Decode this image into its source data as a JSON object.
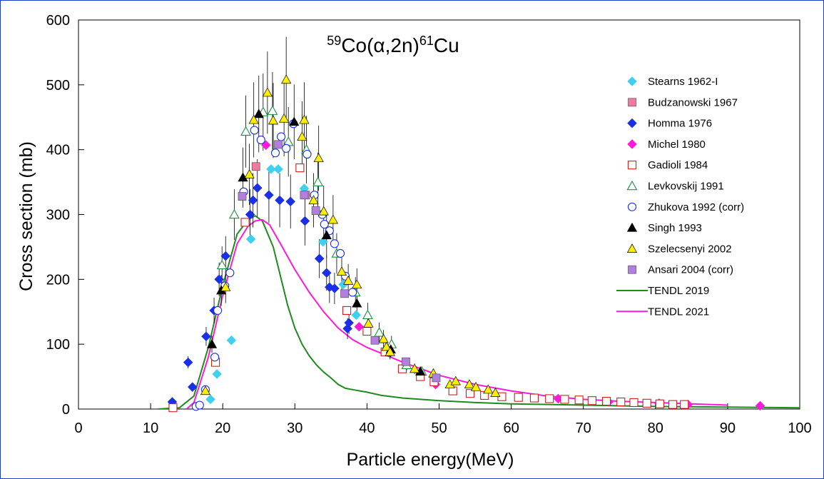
{
  "chart_data": {
    "type": "scatter",
    "title": {
      "prefix_sup": "59",
      "main": "Co(α,2n)",
      "suffix_sup": "61",
      "suffix": "Cu"
    },
    "xlabel": "Particle energy(MeV)",
    "ylabel": "Cross section (mb)",
    "xlim": [
      0,
      100
    ],
    "ylim": [
      0,
      600
    ],
    "xticks": [
      0,
      10,
      20,
      30,
      40,
      50,
      60,
      70,
      80,
      90,
      100
    ],
    "yticks": [
      0,
      100,
      200,
      300,
      400,
      500,
      600
    ],
    "legend_position": "right",
    "series": [
      {
        "name": "Stearns 1962-I",
        "marker": "diamond",
        "color": "#3fd0f0",
        "filled": true,
        "points": [
          [
            18.3,
            15
          ],
          [
            19.2,
            54
          ],
          [
            21.2,
            106
          ],
          [
            23.9,
            262
          ],
          [
            26.7,
            370
          ],
          [
            27.7,
            370
          ],
          [
            31.3,
            340
          ],
          [
            33.9,
            258
          ],
          [
            36.7,
            192
          ],
          [
            38.5,
            145
          ]
        ]
      },
      {
        "name": "Budzanowski 1967",
        "marker": "square",
        "color": "#f07aa0",
        "filled": true,
        "points": [
          [
            24.6,
            374
          ],
          [
            31.5,
            330
          ]
        ]
      },
      {
        "name": "Homma 1976",
        "marker": "diamond",
        "color": "#1a2fe6",
        "filled": true,
        "points": [
          [
            13.0,
            11
          ],
          [
            15.2,
            72
          ],
          [
            15.8,
            34
          ],
          [
            17.7,
            112
          ],
          [
            18.8,
            152
          ],
          [
            19.5,
            200
          ],
          [
            20.4,
            236
          ],
          [
            23.8,
            300
          ],
          [
            24.2,
            322
          ],
          [
            24.8,
            341
          ],
          [
            26.4,
            330
          ],
          [
            27.9,
            322
          ],
          [
            29.4,
            320
          ],
          [
            31.4,
            290
          ],
          [
            33.4,
            232
          ],
          [
            34.4,
            210
          ],
          [
            34.8,
            188
          ],
          [
            35.5,
            186
          ],
          [
            37.3,
            124
          ],
          [
            37.5,
            133
          ]
        ]
      },
      {
        "name": "Michel 1980",
        "marker": "diamond",
        "color": "#ff1ad9",
        "filled": true,
        "points": [
          [
            26.0,
            407
          ],
          [
            38.9,
            127
          ],
          [
            49.5,
            38
          ],
          [
            66.5,
            16
          ],
          [
            73.5,
            11
          ],
          [
            80.5,
            9
          ],
          [
            84.5,
            7
          ],
          [
            94.5,
            5
          ]
        ]
      },
      {
        "name": "Gadioli 1984",
        "marker": "square",
        "color": "#cc1f1f",
        "filled": false,
        "points": [
          [
            13.1,
            2
          ],
          [
            19.0,
            72
          ],
          [
            23.1,
            288
          ],
          [
            30.7,
            372
          ],
          [
            37.2,
            152
          ],
          [
            40.0,
            120
          ],
          [
            42.5,
            88
          ],
          [
            44.9,
            62
          ],
          [
            47.4,
            50
          ],
          [
            49.3,
            42
          ],
          [
            51.9,
            28
          ],
          [
            54.3,
            24
          ],
          [
            56.3,
            21
          ],
          [
            58.7,
            19
          ],
          [
            61.0,
            18
          ],
          [
            63.2,
            17
          ],
          [
            65.3,
            16
          ],
          [
            67.4,
            15
          ],
          [
            69.4,
            14
          ],
          [
            71.2,
            13
          ],
          [
            73.2,
            12
          ],
          [
            75.2,
            11
          ],
          [
            77.0,
            10
          ],
          [
            78.8,
            9
          ],
          [
            80.6,
            8
          ],
          [
            82.4,
            7
          ],
          [
            84.0,
            7
          ]
        ]
      },
      {
        "name": "Levkovskij 1991",
        "marker": "triangle",
        "color": "#1f8f3f",
        "filled": false,
        "points": [
          [
            19.9,
            222
          ],
          [
            21.6,
            300
          ],
          [
            23.2,
            428
          ],
          [
            25.6,
            458
          ],
          [
            26.9,
            460
          ],
          [
            29.1,
            412
          ],
          [
            31.6,
            400
          ],
          [
            33.2,
            350
          ],
          [
            35.8,
            240
          ],
          [
            38.4,
            180
          ],
          [
            40.1,
            145
          ],
          [
            41.7,
            118
          ],
          [
            43.4,
            100
          ],
          [
            45.5,
            68
          ],
          [
            47.6,
            58
          ]
        ]
      },
      {
        "name": "Zhukova 1992 (corr)",
        "marker": "circle",
        "color": "#1a2fe6",
        "filled": false,
        "points": [
          [
            16.3,
            4
          ],
          [
            16.8,
            6
          ],
          [
            17.6,
            30
          ],
          [
            18.9,
            80
          ],
          [
            19.3,
            152
          ],
          [
            20.3,
            190
          ],
          [
            21.0,
            210
          ],
          [
            22.9,
            335
          ],
          [
            24.4,
            430
          ],
          [
            25.3,
            415
          ],
          [
            27.3,
            395
          ],
          [
            28.1,
            420
          ],
          [
            28.8,
            402
          ],
          [
            29.8,
            440
          ],
          [
            31.7,
            393
          ],
          [
            32.7,
            330
          ],
          [
            33.8,
            300
          ],
          [
            34.1,
            285
          ],
          [
            34.8,
            275
          ],
          [
            35.5,
            255
          ],
          [
            36.3,
            240
          ],
          [
            37.0,
            205
          ],
          [
            38.0,
            180
          ]
        ]
      },
      {
        "name": "Singh 1993",
        "marker": "triangle",
        "color": "#000000",
        "filled": true,
        "points": [
          [
            18.5,
            100
          ],
          [
            19.8,
            183
          ],
          [
            22.8,
            357
          ],
          [
            25.0,
            455
          ],
          [
            29.9,
            443
          ],
          [
            34.4,
            268
          ],
          [
            38.6,
            163
          ],
          [
            43.3,
            92
          ],
          [
            47.4,
            58
          ]
        ]
      },
      {
        "name": "Szelecsenyi 2002",
        "marker": "triangle",
        "color": "#ffee00",
        "filled": true,
        "points": [
          [
            17.6,
            28
          ],
          [
            20.4,
            188
          ],
          [
            23.7,
            362
          ],
          [
            24.3,
            446
          ],
          [
            26.2,
            488
          ],
          [
            27.0,
            445
          ],
          [
            28.5,
            448
          ],
          [
            28.8,
            508
          ],
          [
            31.0,
            420
          ],
          [
            31.3,
            446
          ],
          [
            32.6,
            322
          ],
          [
            33.3,
            387
          ],
          [
            34.0,
            305
          ],
          [
            35.3,
            292
          ],
          [
            36.5,
            212
          ],
          [
            37.4,
            198
          ],
          [
            38.6,
            192
          ],
          [
            40.2,
            132
          ],
          [
            42.3,
            108
          ],
          [
            42.7,
            96
          ],
          [
            43.2,
            88
          ],
          [
            46.6,
            62
          ],
          [
            49.2,
            55
          ],
          [
            51.5,
            38
          ],
          [
            52.3,
            43
          ],
          [
            54.2,
            38
          ],
          [
            55.1,
            34
          ],
          [
            56.8,
            30
          ],
          [
            57.8,
            25
          ]
        ]
      },
      {
        "name": "Ansari 2004 (corr)",
        "marker": "square",
        "color": "#b27fe0",
        "filled": true,
        "points": [
          [
            22.7,
            328
          ],
          [
            27.7,
            408
          ],
          [
            31.3,
            330
          ],
          [
            32.9,
            306
          ],
          [
            36.9,
            178
          ],
          [
            41.1,
            106
          ],
          [
            45.4,
            73
          ],
          [
            49.6,
            48
          ]
        ]
      },
      {
        "name": "TENDL 2019",
        "marker": "line",
        "color": "#1f8a1f",
        "filled": false,
        "points": [
          [
            11,
            0
          ],
          [
            14,
            2
          ],
          [
            16,
            20
          ],
          [
            18,
            95
          ],
          [
            20,
            190
          ],
          [
            22,
            270
          ],
          [
            23.5,
            292
          ],
          [
            24.5,
            298
          ],
          [
            25.5,
            290
          ],
          [
            27,
            250
          ],
          [
            28,
            205
          ],
          [
            29,
            160
          ],
          [
            30,
            125
          ],
          [
            31,
            100
          ],
          [
            32,
            82
          ],
          [
            33,
            68
          ],
          [
            34,
            57
          ],
          [
            35,
            48
          ],
          [
            36,
            38
          ],
          [
            37,
            32
          ],
          [
            38,
            30
          ],
          [
            40,
            26
          ],
          [
            42,
            21
          ],
          [
            45,
            17
          ],
          [
            50,
            13
          ],
          [
            55,
            10
          ],
          [
            60,
            8
          ],
          [
            70,
            6
          ],
          [
            80,
            4
          ],
          [
            90,
            3
          ],
          [
            100,
            2
          ]
        ]
      },
      {
        "name": "TENDL 2021",
        "marker": "line",
        "color": "#ff1ad9",
        "filled": false,
        "points": [
          [
            15,
            0
          ],
          [
            16,
            10
          ],
          [
            18,
            80
          ],
          [
            20,
            175
          ],
          [
            22,
            255
          ],
          [
            23.5,
            282
          ],
          [
            24.5,
            290
          ],
          [
            25.5,
            292
          ],
          [
            26.5,
            284
          ],
          [
            28,
            255
          ],
          [
            30,
            215
          ],
          [
            32,
            180
          ],
          [
            34,
            150
          ],
          [
            36,
            125
          ],
          [
            38,
            107
          ],
          [
            40,
            95
          ],
          [
            42,
            86
          ],
          [
            45,
            72
          ],
          [
            48,
            60
          ],
          [
            50,
            52
          ],
          [
            55,
            38
          ],
          [
            60,
            28
          ],
          [
            65,
            20
          ],
          [
            70,
            15
          ],
          [
            75,
            12
          ],
          [
            80,
            10
          ],
          [
            85,
            8
          ],
          [
            90,
            6
          ]
        ]
      }
    ]
  }
}
